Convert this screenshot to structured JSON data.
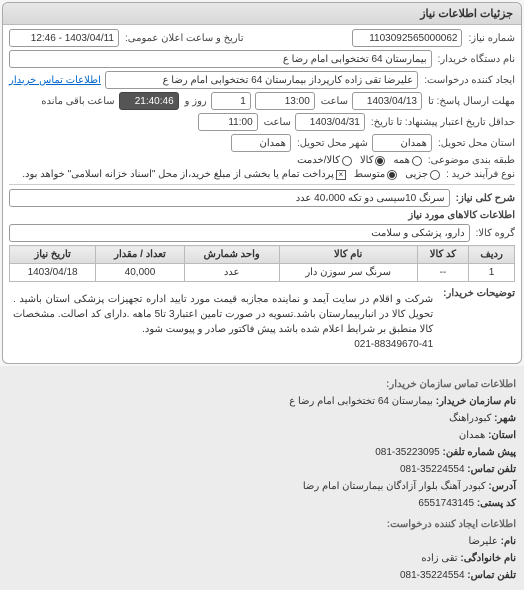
{
  "panel_title": "جزئیات اطلاعات نیاز",
  "fields": {
    "need_no_label": "شماره نیاز:",
    "need_no": "1103092565000062",
    "announce_label": "تاریخ و ساعت اعلان عمومی:",
    "announce_value": "1403/04/11 - 12:46",
    "buyer_org_label": "نام دستگاه خریدار:",
    "buyer_org": "بیمارستان  64 تختخوابی امام رضا   ع",
    "requester_label": "ایجاد کننده درخواست:",
    "requester": "علیرضا تقی زاده کارپرداز بیمارستان  64 تختخوابی امام رضا   ع",
    "contact_link": "اطلاعات تماس خریدار",
    "deadline_send_label": "مهلت ارسال پاسخ: تا",
    "deadline_send_date": "1403/04/13",
    "deadline_send_time_label": "ساعت",
    "deadline_send_time": "13:00",
    "remain_label": "روز و",
    "remain_days": "1",
    "remain_time": "21:40:46",
    "remain_suffix": "ساعت باقی مانده",
    "delivery_deadline_label": "حداقل تاریخ اعتبار پیشنهاد: تا تاریخ:",
    "delivery_date": "1403/04/31",
    "delivery_time_label": "ساعت",
    "delivery_time": "11:00",
    "province_label": "استان محل تحویل:",
    "province": "همدان",
    "city_label": "شهر محل تحویل:",
    "city": "همدان",
    "category_label": "طبقه بندی موضوعی:",
    "cat_all": "همه",
    "cat_goods": "کالا",
    "cat_service": "کالا/خدمت",
    "purchase_type_label": "نوع فرآیند خرید :",
    "pt_small": "جزیی",
    "pt_medium": "متوسط",
    "pt_note": "پرداخت تمام یا بخشی از مبلغ خرید،از محل \"اسناد خزانه اسلامی\" خواهد بود.",
    "need_title_label": "شرح کلی نیاز:",
    "need_title": "سرنگ 10سیسی دو تکه 40،000 عدد",
    "goods_header": "اطلاعات کالاهای مورد نیاز",
    "group_label": "گروه کالا:",
    "group_value": "دارو، پزشکی و سلامت"
  },
  "table": {
    "columns": [
      "ردیف",
      "کد کالا",
      "نام کالا",
      "واحد شمارش",
      "تعداد / مقدار",
      "تاریخ نیاز"
    ],
    "rows": [
      [
        "1",
        "--",
        "سرنگ سر سوزن دار",
        "عدد",
        "40,000",
        "1403/04/18"
      ]
    ]
  },
  "description": {
    "label": "توضیحات خریدار:",
    "text": "شرکت و اقلام در سایت آیمد و نماینده مجازبه قیمت مورد تایید اداره تجهیزات پزشکی استان باشید . تحویل کالا در انباربیمارستان باشد.تسویه در صورت تامین اعتبار3 تا5 ماهه .دارای کد اصالت. مشخصات کالا منطبق بر شرایط اعلام شده باشد پیش فاکتور صادر و پیوست شود.",
    "phone": "021-88349670-41"
  },
  "contact": {
    "header1": "اطلاعات تماس سازمان خریدار:",
    "org_label": "نام سازمان خریدار:",
    "org": "بیمارستان 64 تختخوابی امام رضا ع",
    "city_label": "شهر:",
    "city": "کبودراهنگ",
    "province_label": "استان:",
    "province": "همدان",
    "fax_label": "پیش شماره تلفن:",
    "fax": "081-35223095",
    "tel_label": "تلفن تماس:",
    "tel": "081-35224554",
    "addr_label": "آدرس:",
    "addr": "کبودر آهنگ بلوار آزادگان بیمارستان امام رضا",
    "post_label": "کد پستی:",
    "post": "6551743145",
    "header2": "اطلاعات ایجاد کننده درخواست:",
    "fname_label": "نام:",
    "fname": "علیرضا",
    "lname_label": "نام خانوادگی:",
    "lname": "تقی زاده",
    "tel2_label": "تلفن تماس:",
    "tel2": "081-35224554"
  }
}
